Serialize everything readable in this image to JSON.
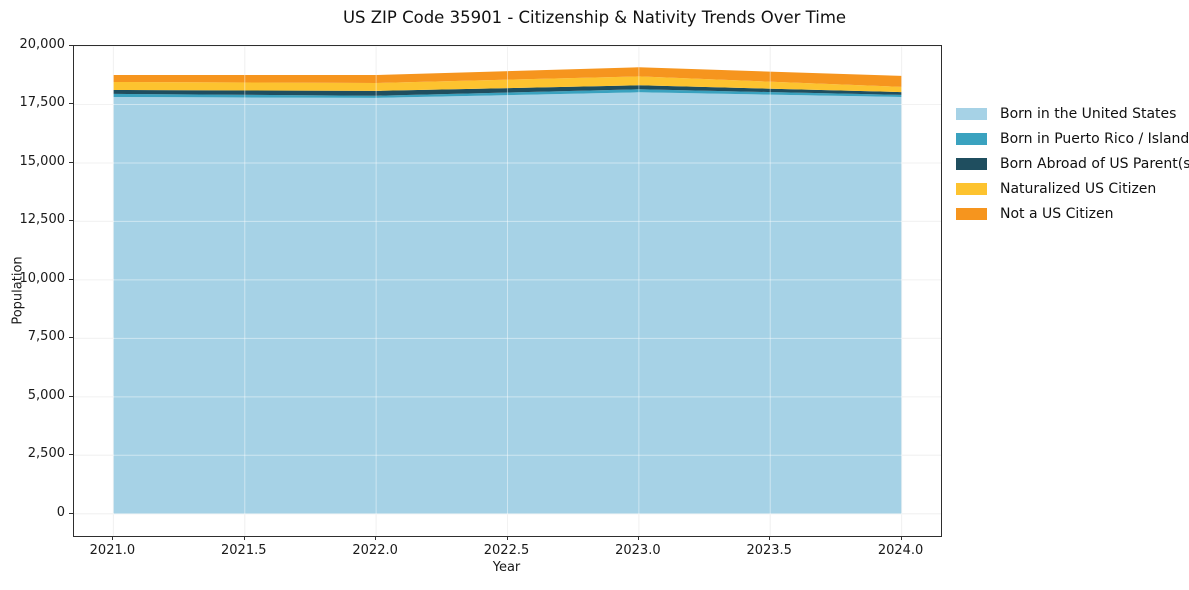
{
  "chart_data": {
    "type": "area",
    "stacked": true,
    "title": "US ZIP Code 35901 - Citizenship & Nativity Trends Over Time",
    "xlabel": "Year",
    "ylabel": "Population",
    "x": [
      2021,
      2022,
      2023,
      2024
    ],
    "series": [
      {
        "name": "Born in the United States",
        "color": "#A6D2E6",
        "values": [
          17820,
          17780,
          18020,
          17820
        ]
      },
      {
        "name": "Born in Puerto Rico / Islands",
        "color": "#3AA2BF",
        "values": [
          130,
          90,
          130,
          90
        ]
      },
      {
        "name": "Born Abroad of US Parent(s)",
        "color": "#1F4E5F",
        "values": [
          170,
          210,
          170,
          120
        ]
      },
      {
        "name": "Naturalized US Citizen",
        "color": "#FDC32F",
        "values": [
          340,
          340,
          380,
          220
        ]
      },
      {
        "name": "Not a US Citizen",
        "color": "#F6951E",
        "values": [
          300,
          340,
          390,
          470
        ]
      }
    ],
    "totals": [
      18760,
      18760,
      19090,
      18720
    ],
    "xticks": {
      "values": [
        2021.0,
        2021.5,
        2022.0,
        2022.5,
        2023.0,
        2023.5,
        2024.0
      ],
      "labels": [
        "2021.0",
        "2021.5",
        "2022.0",
        "2022.5",
        "2023.0",
        "2023.5",
        "2024.0"
      ]
    },
    "yticks": {
      "values": [
        0,
        2500,
        5000,
        7500,
        10000,
        12500,
        15000,
        17500,
        20000
      ],
      "labels": [
        "0",
        "2,500",
        "5,000",
        "7,500",
        "10,000",
        "12,500",
        "15,000",
        "17,500",
        "20,000"
      ]
    },
    "xlim": [
      2020.85,
      2024.15
    ],
    "ylim": [
      -950,
      20000
    ],
    "grid": true,
    "legend_position": "right-outside",
    "colors": {
      "grid_under": "#E8E8E8",
      "grid_over": "rgba(255,255,255,0.45)",
      "spine": "#2e2e2e",
      "text": "#1a1a1a"
    }
  }
}
